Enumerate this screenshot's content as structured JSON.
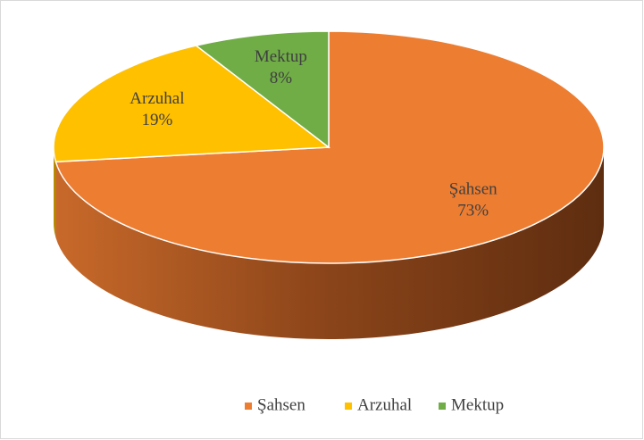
{
  "chart_data": {
    "type": "pie",
    "categories": [
      "Şahsen",
      "Arzuhal",
      "Mektup"
    ],
    "values": [
      73,
      19,
      8
    ],
    "value_labels": [
      "73%",
      "19%",
      "8%"
    ],
    "colors": [
      "#ed7d31",
      "#ffc000",
      "#70ad47"
    ],
    "legend": "bottom"
  }
}
